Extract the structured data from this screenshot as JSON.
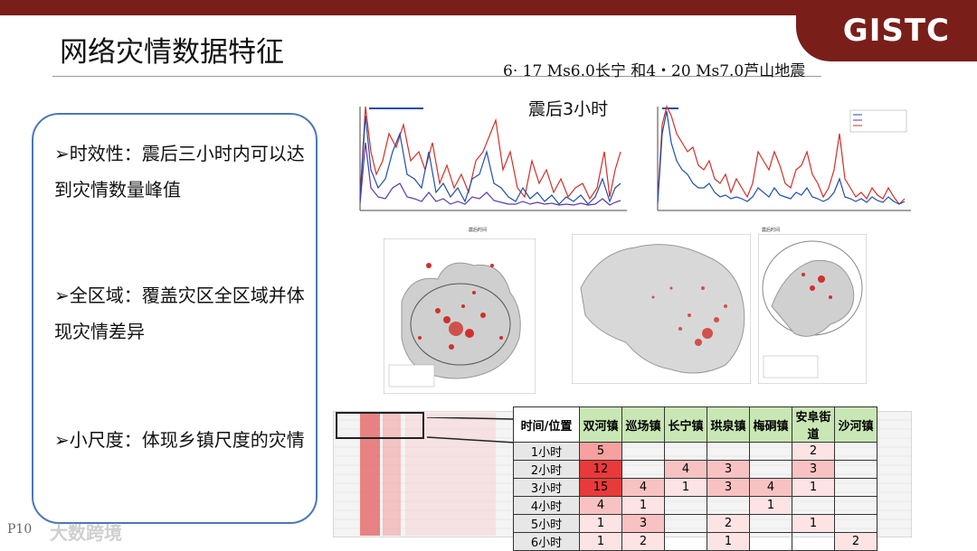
{
  "header": {
    "title": "网络灾情数据特征",
    "subtitle": "6· 17 Ms6.0长宁 和4・20 Ms7.0芦山地震",
    "logo": "GISTC",
    "brand_color": "#7a1e1a"
  },
  "bullets": [
    "➢时效性：震后三小时内可以达到灾情数量峰值",
    "➢全区域：覆盖灾区全区域并体现灾情差异",
    "➢小尺度：体现乡镇尺度的灾情"
  ],
  "footer": {
    "page": "P10",
    "watermark": "大数跨境"
  },
  "chart_annotation": "震后3小时",
  "table": {
    "headers": [
      "时间/位置",
      "双河镇",
      "巡场镇",
      "长宁镇",
      "珙泉镇",
      "梅硐镇",
      "安阜街道",
      "沙河镇"
    ],
    "rows": [
      [
        "1小时",
        "5",
        "",
        "",
        "",
        "",
        "2",
        ""
      ],
      [
        "2小时",
        "12",
        "",
        "4",
        "3",
        "",
        "3",
        ""
      ],
      [
        "3小时",
        "15",
        "4",
        "1",
        "3",
        "4",
        "1",
        ""
      ],
      [
        "4小时",
        "4",
        "1",
        "",
        "",
        "1",
        "",
        ""
      ],
      [
        "5小时",
        "1",
        "3",
        "",
        "2",
        "",
        "1",
        ""
      ],
      [
        "6小时",
        "1",
        "2",
        "",
        "1",
        "",
        "",
        "2"
      ]
    ]
  }
}
